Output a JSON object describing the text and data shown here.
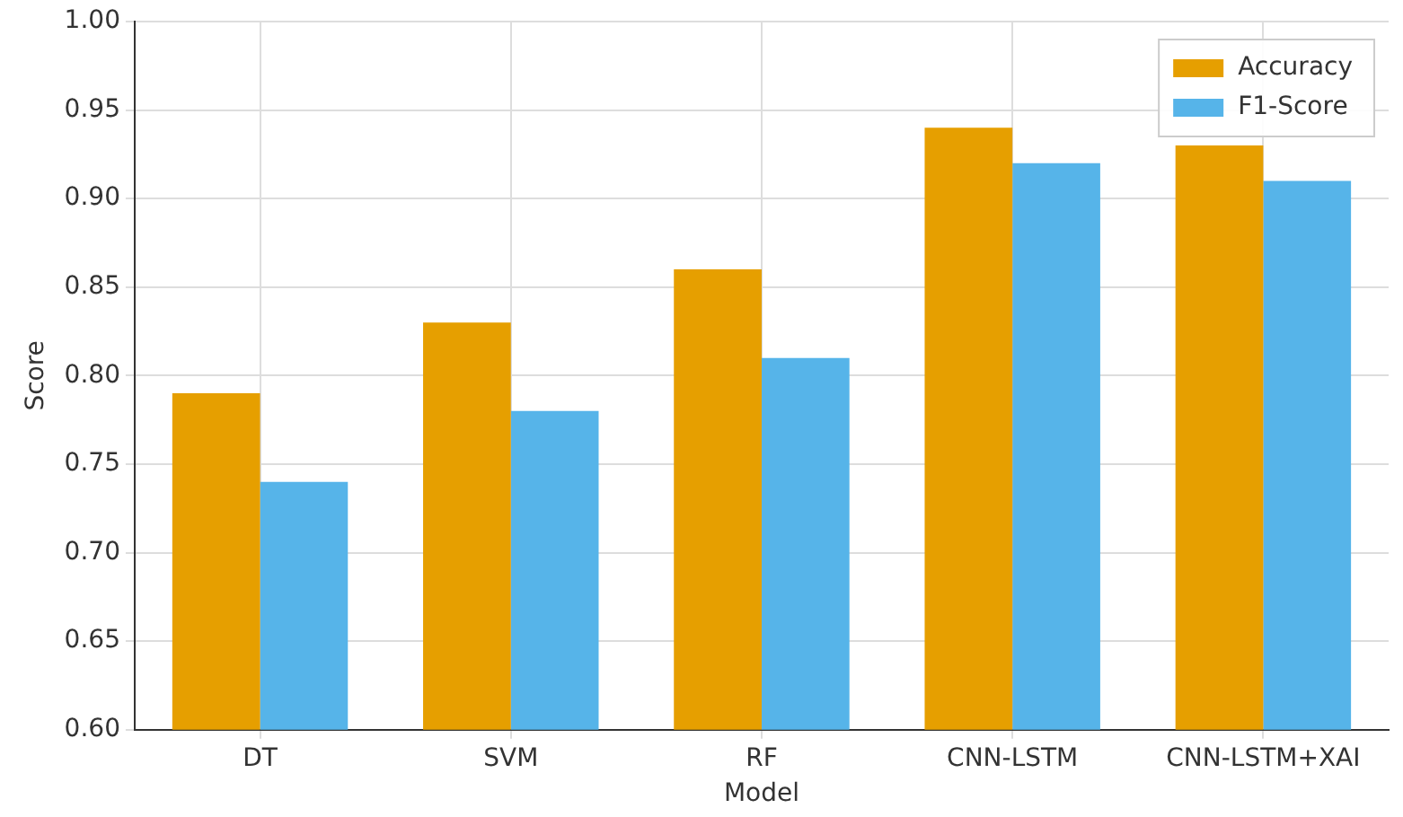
{
  "chart_data": {
    "type": "bar",
    "xlabel": "Model",
    "ylabel": "Score",
    "categories": [
      "DT",
      "SVM",
      "RF",
      "CNN-LSTM",
      "CNN-LSTM+XAI"
    ],
    "series": [
      {
        "name": "Accuracy",
        "color": "#e69f00",
        "values": [
          0.79,
          0.83,
          0.86,
          0.94,
          0.93
        ]
      },
      {
        "name": "F1-Score",
        "color": "#56b4e9",
        "values": [
          0.74,
          0.78,
          0.81,
          0.92,
          0.91
        ]
      }
    ],
    "ylim": [
      0.6,
      1.0
    ],
    "yticks": [
      {
        "value": 0.6,
        "label": "0.60"
      },
      {
        "value": 0.65,
        "label": "0.65"
      },
      {
        "value": 0.7,
        "label": "0.70"
      },
      {
        "value": 0.75,
        "label": "0.75"
      },
      {
        "value": 0.8,
        "label": "0.80"
      },
      {
        "value": 0.85,
        "label": "0.85"
      },
      {
        "value": 0.9,
        "label": "0.90"
      },
      {
        "value": 0.95,
        "label": "0.95"
      },
      {
        "value": 1.0,
        "label": "1.00"
      }
    ],
    "grid": true,
    "legend": "top right"
  }
}
